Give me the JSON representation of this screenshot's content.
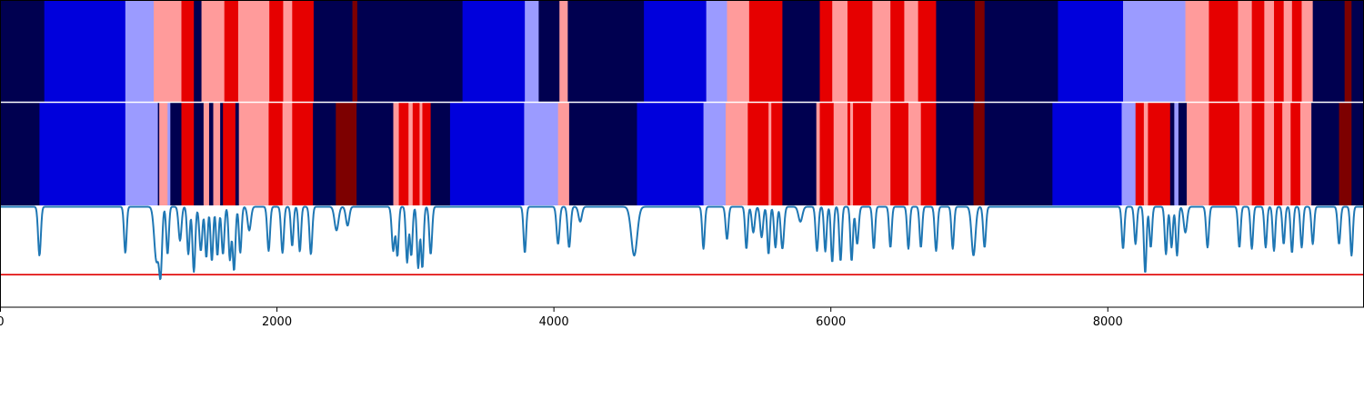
{
  "chart_data": {
    "type": "heatmap",
    "title": "",
    "xlabel": "",
    "ylabel": "",
    "xlim": [
      0,
      9850
    ],
    "x_ticks": [
      0,
      2000,
      4000,
      6000,
      8000
    ],
    "x_tick_labels": [
      "0",
      "2000",
      "4000",
      "6000",
      "8000"
    ],
    "state_colors": {
      "0": "#000050",
      "1": "#0000dc",
      "2": "#9b9bff",
      "3": "#ff9b9b",
      "4": "#e60000",
      "5": "#7d0000"
    },
    "tracks": [
      {
        "segments": [
          [
            0,
            320,
            0
          ],
          [
            320,
            905,
            1
          ],
          [
            905,
            1110,
            2
          ],
          [
            1110,
            1310,
            3
          ],
          [
            1310,
            1400,
            4
          ],
          [
            1400,
            1455,
            0
          ],
          [
            1455,
            1620,
            3
          ],
          [
            1620,
            1720,
            4
          ],
          [
            1720,
            1945,
            3
          ],
          [
            1945,
            2045,
            4
          ],
          [
            2045,
            2110,
            3
          ],
          [
            2110,
            2265,
            4
          ],
          [
            2265,
            2545,
            0
          ],
          [
            2545,
            2580,
            5
          ],
          [
            2580,
            3340,
            0
          ],
          [
            3340,
            3790,
            1
          ],
          [
            3790,
            3890,
            2
          ],
          [
            3890,
            4040,
            0
          ],
          [
            4040,
            4100,
            3
          ],
          [
            4100,
            4650,
            0
          ],
          [
            4650,
            5100,
            1
          ],
          [
            5100,
            5250,
            2
          ],
          [
            5250,
            5410,
            3
          ],
          [
            5410,
            5650,
            4
          ],
          [
            5650,
            5920,
            0
          ],
          [
            5920,
            6010,
            4
          ],
          [
            6010,
            6120,
            3
          ],
          [
            6120,
            6300,
            4
          ],
          [
            6300,
            6430,
            3
          ],
          [
            6430,
            6530,
            4
          ],
          [
            6530,
            6630,
            3
          ],
          [
            6630,
            6760,
            4
          ],
          [
            6760,
            7040,
            0
          ],
          [
            7040,
            7110,
            5
          ],
          [
            7110,
            7640,
            0
          ],
          [
            7640,
            8110,
            1
          ],
          [
            8110,
            8560,
            2
          ],
          [
            8560,
            8730,
            3
          ],
          [
            8730,
            8940,
            4
          ],
          [
            8940,
            9040,
            3
          ],
          [
            9040,
            9130,
            4
          ],
          [
            9130,
            9200,
            3
          ],
          [
            9200,
            9270,
            4
          ],
          [
            9270,
            9330,
            3
          ],
          [
            9330,
            9400,
            4
          ],
          [
            9400,
            9480,
            3
          ],
          [
            9480,
            9710,
            0
          ],
          [
            9710,
            9760,
            5
          ],
          [
            9760,
            9850,
            0
          ]
        ]
      },
      {
        "segments": [
          [
            0,
            285,
            0
          ],
          [
            285,
            905,
            1
          ],
          [
            905,
            1140,
            2
          ],
          [
            1140,
            1150,
            0
          ],
          [
            1150,
            1210,
            3
          ],
          [
            1210,
            1230,
            2
          ],
          [
            1230,
            1310,
            0
          ],
          [
            1310,
            1400,
            4
          ],
          [
            1400,
            1470,
            0
          ],
          [
            1470,
            1510,
            3
          ],
          [
            1510,
            1540,
            0
          ],
          [
            1540,
            1590,
            3
          ],
          [
            1590,
            1610,
            0
          ],
          [
            1610,
            1700,
            4
          ],
          [
            1700,
            1725,
            0
          ],
          [
            1725,
            1940,
            3
          ],
          [
            1940,
            2040,
            4
          ],
          [
            2040,
            2110,
            3
          ],
          [
            2110,
            2260,
            4
          ],
          [
            2260,
            2425,
            0
          ],
          [
            2425,
            2575,
            5
          ],
          [
            2575,
            2840,
            0
          ],
          [
            2840,
            2880,
            3
          ],
          [
            2880,
            2950,
            4
          ],
          [
            2950,
            2980,
            3
          ],
          [
            2980,
            3030,
            4
          ],
          [
            3030,
            3050,
            3
          ],
          [
            3050,
            3110,
            4
          ],
          [
            3110,
            3250,
            0
          ],
          [
            3250,
            3785,
            1
          ],
          [
            3785,
            4030,
            2
          ],
          [
            4030,
            4110,
            3
          ],
          [
            4110,
            4600,
            0
          ],
          [
            4600,
            5080,
            1
          ],
          [
            5080,
            5240,
            2
          ],
          [
            5240,
            5400,
            3
          ],
          [
            5400,
            5550,
            4
          ],
          [
            5550,
            5570,
            3
          ],
          [
            5570,
            5650,
            4
          ],
          [
            5650,
            5895,
            0
          ],
          [
            5895,
            5920,
            3
          ],
          [
            5920,
            6020,
            4
          ],
          [
            6020,
            6120,
            3
          ],
          [
            6120,
            6140,
            4
          ],
          [
            6140,
            6160,
            3
          ],
          [
            6160,
            6290,
            4
          ],
          [
            6290,
            6430,
            3
          ],
          [
            6430,
            6560,
            4
          ],
          [
            6560,
            6650,
            3
          ],
          [
            6650,
            6760,
            4
          ],
          [
            6760,
            7030,
            0
          ],
          [
            7030,
            7110,
            5
          ],
          [
            7110,
            7600,
            0
          ],
          [
            7600,
            8100,
            1
          ],
          [
            8100,
            8200,
            2
          ],
          [
            8200,
            8260,
            4
          ],
          [
            8260,
            8290,
            3
          ],
          [
            8290,
            8450,
            4
          ],
          [
            8450,
            8480,
            0
          ],
          [
            8480,
            8510,
            2
          ],
          [
            8510,
            8570,
            0
          ],
          [
            8570,
            8730,
            3
          ],
          [
            8730,
            8950,
            4
          ],
          [
            8950,
            9040,
            3
          ],
          [
            9040,
            9130,
            4
          ],
          [
            9130,
            9200,
            3
          ],
          [
            9200,
            9260,
            4
          ],
          [
            9260,
            9320,
            3
          ],
          [
            9320,
            9390,
            4
          ],
          [
            9390,
            9470,
            3
          ],
          [
            9470,
            9670,
            0
          ],
          [
            9670,
            9760,
            5
          ],
          [
            9760,
            9850,
            0
          ]
        ]
      }
    ],
    "signal": {
      "baseline": 0.0,
      "threshold": -1.0,
      "ylim": [
        -1.48,
        0.02
      ],
      "line_color": "#1f77b4",
      "threshold_color": "#e00000",
      "dips": [
        [
          285,
          -0.72,
          28
        ],
        [
          905,
          -0.68,
          26
        ],
        [
          1130,
          -0.8,
          45
        ],
        [
          1160,
          -0.92,
          30
        ],
        [
          1210,
          -0.7,
          26
        ],
        [
          1300,
          -0.5,
          30
        ],
        [
          1360,
          -0.7,
          26
        ],
        [
          1400,
          -0.96,
          28
        ],
        [
          1450,
          -0.65,
          30
        ],
        [
          1490,
          -0.75,
          26
        ],
        [
          1530,
          -0.8,
          26
        ],
        [
          1570,
          -0.72,
          26
        ],
        [
          1610,
          -0.7,
          28
        ],
        [
          1660,
          -0.78,
          26
        ],
        [
          1690,
          -0.94,
          28
        ],
        [
          1735,
          -0.68,
          26
        ],
        [
          1800,
          -0.35,
          34
        ],
        [
          1940,
          -0.65,
          28
        ],
        [
          2040,
          -0.68,
          28
        ],
        [
          2110,
          -0.58,
          26
        ],
        [
          2165,
          -0.66,
          26
        ],
        [
          2245,
          -0.7,
          28
        ],
        [
          2430,
          -0.35,
          40
        ],
        [
          2510,
          -0.28,
          34
        ],
        [
          2840,
          -0.65,
          30
        ],
        [
          2870,
          -0.72,
          26
        ],
        [
          2940,
          -0.82,
          26
        ],
        [
          2970,
          -0.72,
          26
        ],
        [
          3020,
          -0.9,
          26
        ],
        [
          3050,
          -0.9,
          26
        ],
        [
          3110,
          -0.7,
          28
        ],
        [
          3790,
          -0.68,
          26
        ],
        [
          4030,
          -0.55,
          30
        ],
        [
          4110,
          -0.6,
          30
        ],
        [
          4190,
          -0.22,
          34
        ],
        [
          4580,
          -0.72,
          60
        ],
        [
          5080,
          -0.62,
          26
        ],
        [
          5250,
          -0.48,
          28
        ],
        [
          5390,
          -0.62,
          26
        ],
        [
          5440,
          -0.38,
          30
        ],
        [
          5500,
          -0.45,
          30
        ],
        [
          5550,
          -0.7,
          26
        ],
        [
          5600,
          -0.6,
          28
        ],
        [
          5650,
          -0.62,
          32
        ],
        [
          5780,
          -0.22,
          40
        ],
        [
          5900,
          -0.65,
          28
        ],
        [
          5960,
          -0.66,
          26
        ],
        [
          6010,
          -0.82,
          26
        ],
        [
          6070,
          -0.8,
          26
        ],
        [
          6150,
          -0.8,
          26
        ],
        [
          6190,
          -0.55,
          30
        ],
        [
          6310,
          -0.62,
          26
        ],
        [
          6430,
          -0.6,
          26
        ],
        [
          6560,
          -0.62,
          26
        ],
        [
          6650,
          -0.6,
          26
        ],
        [
          6760,
          -0.65,
          28
        ],
        [
          6880,
          -0.62,
          26
        ],
        [
          7030,
          -0.72,
          40
        ],
        [
          7110,
          -0.6,
          28
        ],
        [
          8110,
          -0.62,
          26
        ],
        [
          8200,
          -0.55,
          26
        ],
        [
          8270,
          -0.98,
          26
        ],
        [
          8310,
          -0.6,
          26
        ],
        [
          8420,
          -0.7,
          26
        ],
        [
          8460,
          -0.6,
          26
        ],
        [
          8500,
          -0.72,
          26
        ],
        [
          8560,
          -0.38,
          34
        ],
        [
          8720,
          -0.6,
          28
        ],
        [
          8950,
          -0.6,
          26
        ],
        [
          9040,
          -0.62,
          26
        ],
        [
          9140,
          -0.6,
          26
        ],
        [
          9200,
          -0.65,
          26
        ],
        [
          9270,
          -0.55,
          26
        ],
        [
          9330,
          -0.68,
          26
        ],
        [
          9400,
          -0.6,
          26
        ],
        [
          9480,
          -0.55,
          26
        ],
        [
          9670,
          -0.55,
          28
        ],
        [
          9760,
          -0.72,
          26
        ]
      ]
    }
  }
}
